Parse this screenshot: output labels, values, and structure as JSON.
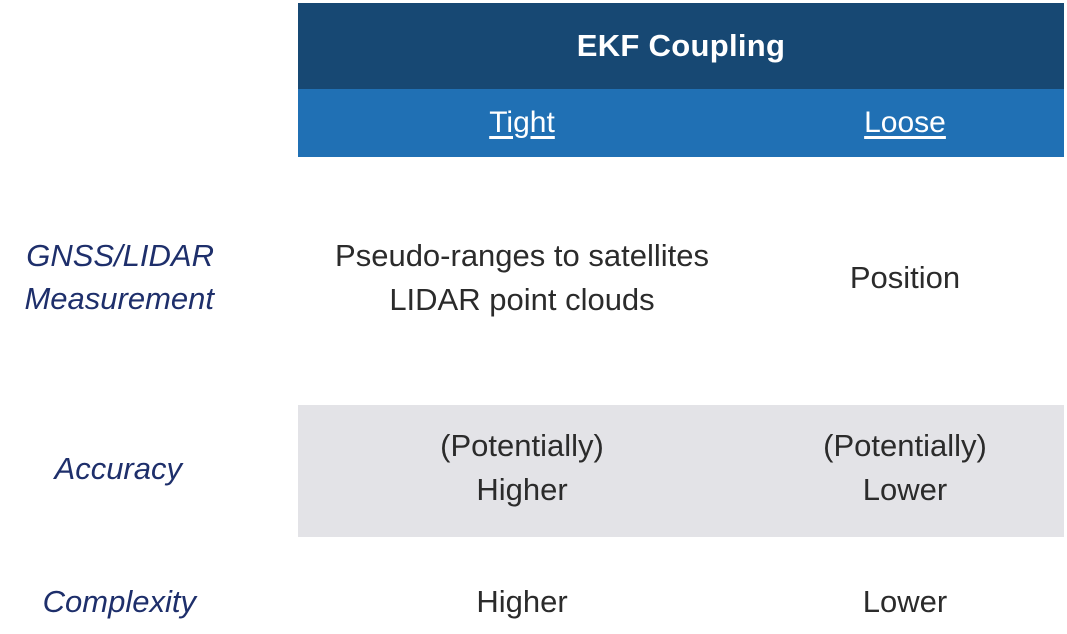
{
  "table": {
    "header_title": "EKF Coupling",
    "columns": [
      "Tight",
      "Loose"
    ],
    "rows": [
      {
        "label_lines": [
          "GNSS/LIDAR",
          "Measurement"
        ],
        "tight_lines": [
          "Pseudo-ranges to satellites",
          "LIDAR point clouds"
        ],
        "loose_lines": [
          "Position"
        ]
      },
      {
        "label_lines": [
          "Accuracy"
        ],
        "tight_lines": [
          "(Potentially)",
          "Higher"
        ],
        "loose_lines": [
          "(Potentially)",
          "Lower"
        ]
      },
      {
        "label_lines": [
          "Complexity"
        ],
        "tight_lines": [
          "Higher"
        ],
        "loose_lines": [
          "Lower"
        ]
      }
    ]
  },
  "colors": {
    "header_dark": "#174873",
    "header_light": "#2070b4",
    "row_shade": "#e3e3e7",
    "label_text": "#1e2f6b"
  }
}
